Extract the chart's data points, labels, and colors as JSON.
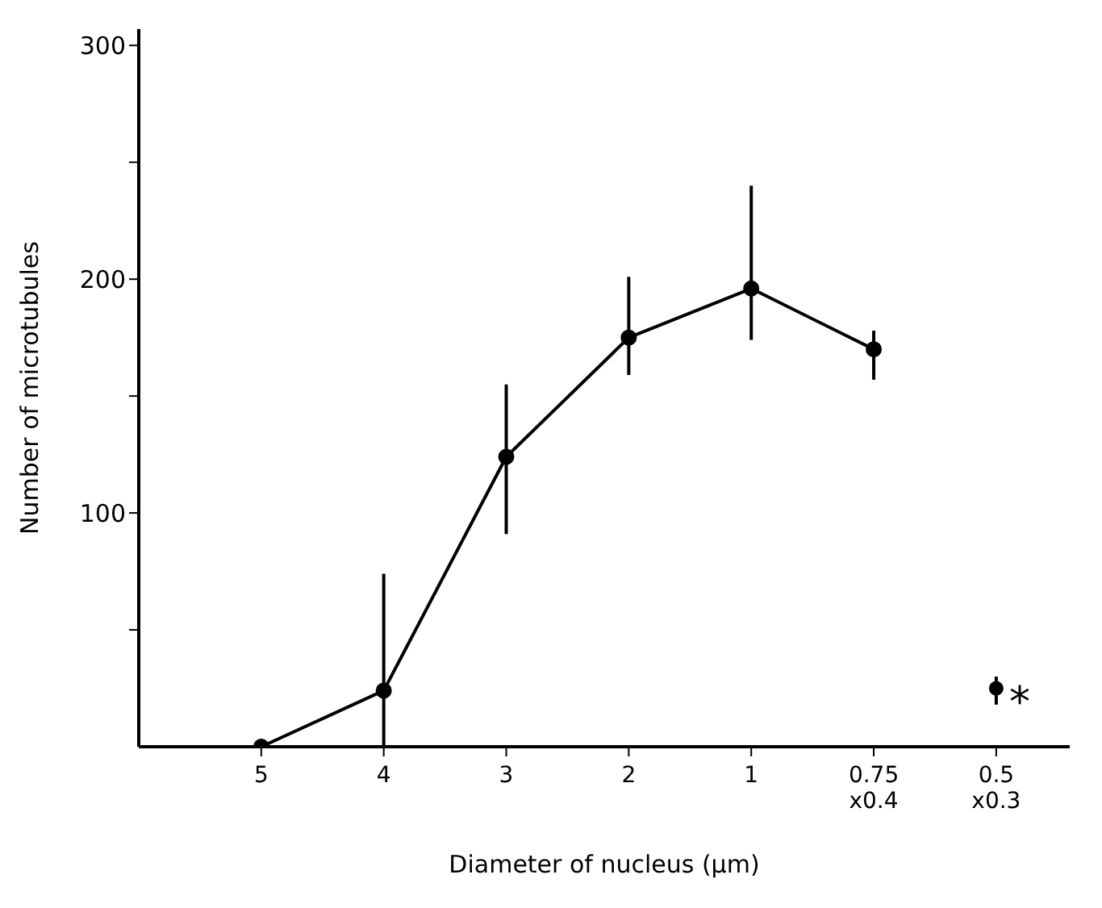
{
  "chart_data": {
    "type": "line",
    "xlabel": "Diameter of nucleus (µm)",
    "ylabel": "Number of microtubules",
    "categories": [
      "5",
      "4",
      "3",
      "2",
      "1",
      "0.75\nx0.4",
      "0.5\nx0.3"
    ],
    "series": [
      {
        "color": "#000000",
        "values": [
          0,
          24,
          124,
          175,
          196,
          170,
          null
        ],
        "errors": [
          null,
          [
            0,
            74
          ],
          [
            91,
            155
          ],
          [
            159,
            201
          ],
          [
            174,
            240
          ],
          [
            157,
            178
          ],
          null
        ]
      },
      {
        "type": "scatter",
        "color": "#000000",
        "values": [
          null,
          null,
          null,
          null,
          null,
          null,
          25
        ],
        "errors": [
          null,
          null,
          null,
          null,
          null,
          null,
          [
            18,
            30
          ]
        ]
      }
    ],
    "ylim": [
      0,
      307
    ],
    "yticks": [
      {
        "value": 50,
        "label": null
      },
      100,
      {
        "value": 150,
        "label": null
      },
      200,
      {
        "value": 250,
        "label": null
      },
      300
    ],
    "annotations": [
      {
        "text": "*",
        "x": "0.5\nx0.3",
        "y": 25
      }
    ],
    "grid": false,
    "legend": false,
    "marker": "circle",
    "line_style": "solid"
  }
}
